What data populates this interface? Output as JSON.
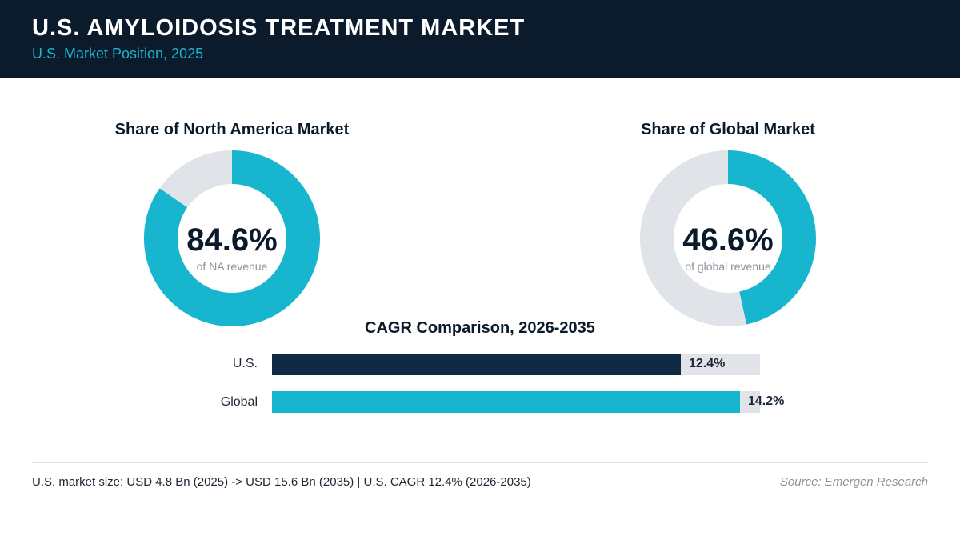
{
  "header": {
    "title": "U.S. AMYLOIDOSIS TREATMENT MARKET",
    "subtitle": "U.S. Market Position, 2025"
  },
  "colors": {
    "header_bg": "#0b1b2b",
    "accent": "#17b6ce",
    "navy": "#0e2a44",
    "track": "#e0e4e8"
  },
  "chart_data": [
    {
      "type": "pie",
      "title": "Share of North America Market",
      "center_value": "84.6%",
      "center_label": "of NA revenue",
      "values": [
        84.6,
        15.4
      ],
      "colors": [
        "#17b6ce",
        "#e0e4e8"
      ]
    },
    {
      "type": "pie",
      "title": "Share of Global Market",
      "center_value": "46.6%",
      "center_label": "of global revenue",
      "values": [
        46.6,
        53.4
      ],
      "colors": [
        "#17b6ce",
        "#e0e4e8"
      ]
    },
    {
      "type": "bar",
      "orientation": "horizontal",
      "title": "CAGR Comparison, 2026-2035",
      "categories": [
        "U.S.",
        "Global"
      ],
      "values": [
        12.4,
        14.2
      ],
      "value_labels": [
        "12.4%",
        "14.2%"
      ],
      "colors": [
        "#0e2a44",
        "#17b6ce"
      ],
      "xlim": [
        0,
        14.8
      ]
    }
  ],
  "footer": {
    "note": "U.S. market size: USD 4.8 Bn (2025) -> USD 15.6 Bn (2035)  |  U.S. CAGR 12.4% (2026-2035)",
    "source": "Source: Emergen Research"
  }
}
